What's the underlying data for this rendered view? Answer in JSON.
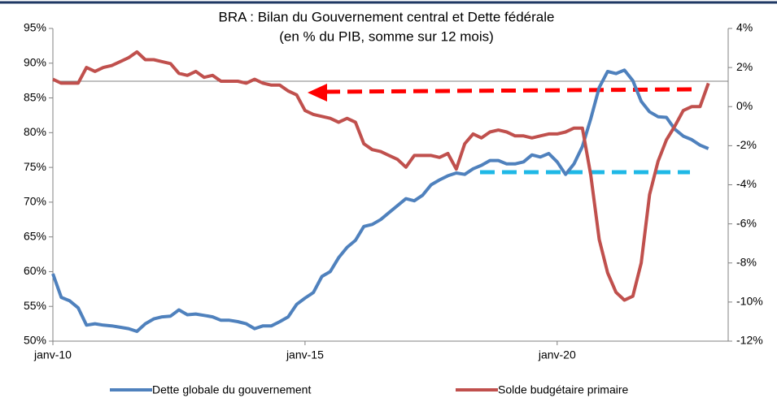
{
  "chart_data": {
    "type": "line",
    "title": "BRA : Bilan du Gouvernement central et Dette fédérale",
    "subtitle": "(en % du PIB, somme sur 12 mois)",
    "categories": [
      "janv-10",
      null,
      null,
      null,
      null,
      null,
      null,
      null,
      null,
      null,
      null,
      null,
      null,
      null,
      null,
      null,
      null,
      null,
      null,
      null,
      null,
      null,
      null,
      null,
      null,
      null,
      null,
      null,
      null,
      null,
      "janv-15",
      null,
      null,
      null,
      null,
      null,
      null,
      null,
      null,
      null,
      null,
      null,
      null,
      null,
      null,
      null,
      null,
      null,
      null,
      null,
      null,
      null,
      null,
      null,
      null,
      null,
      null,
      null,
      null,
      null,
      "janv-20",
      null,
      null,
      null,
      null,
      null,
      null,
      null,
      null,
      null,
      null,
      null,
      null,
      null,
      null,
      null,
      null,
      null,
      null
    ],
    "series": [
      {
        "name": "Dette globale du gouvernement",
        "color": "#4f81bd",
        "axis": "y",
        "values": [
          59.7,
          56.3,
          55.8,
          54.8,
          52.3,
          52.5,
          52.3,
          52.2,
          52.0,
          51.8,
          51.4,
          52.5,
          53.2,
          53.5,
          53.6,
          54.5,
          53.8,
          53.9,
          53.7,
          53.5,
          53.0,
          53.0,
          52.8,
          52.5,
          51.8,
          52.2,
          52.2,
          52.8,
          53.5,
          55.3,
          56.2,
          57.0,
          59.3,
          60.0,
          62.0,
          63.5,
          64.5,
          66.5,
          66.8,
          67.5,
          68.5,
          69.5,
          70.5,
          70.2,
          71.0,
          72.5,
          73.2,
          73.8,
          74.2,
          74.0,
          74.8,
          75.3,
          76.0,
          76.0,
          75.5,
          75.5,
          75.8,
          76.8,
          76.5,
          77.0,
          75.8,
          74.0,
          75.5,
          78.0,
          82.0,
          86.5,
          88.8,
          88.5,
          89.0,
          87.5,
          84.5,
          83.0,
          82.3,
          82.2,
          80.5,
          79.5,
          79.0,
          78.2,
          77.7
        ]
      },
      {
        "name": "Solde budgétaire primaire",
        "color": "#c0504d",
        "axis": "y2",
        "values": [
          1.4,
          1.2,
          1.2,
          1.2,
          2.0,
          1.8,
          2.0,
          2.1,
          2.3,
          2.5,
          2.8,
          2.4,
          2.4,
          2.3,
          2.2,
          1.7,
          1.6,
          1.8,
          1.5,
          1.6,
          1.3,
          1.3,
          1.3,
          1.2,
          1.4,
          1.2,
          1.1,
          1.1,
          0.8,
          0.6,
          -0.2,
          -0.4,
          -0.5,
          -0.6,
          -0.8,
          -0.6,
          -0.8,
          -1.9,
          -2.2,
          -2.3,
          -2.5,
          -2.7,
          -3.1,
          -2.5,
          -2.5,
          -2.5,
          -2.6,
          -2.4,
          -3.2,
          -1.9,
          -1.4,
          -1.6,
          -1.3,
          -1.2,
          -1.3,
          -1.5,
          -1.5,
          -1.6,
          -1.5,
          -1.4,
          -1.4,
          -1.3,
          -1.1,
          -1.1,
          -3.5,
          -6.8,
          -8.5,
          -9.5,
          -9.9,
          -9.7,
          -8.0,
          -4.5,
          -2.8,
          -1.7,
          -1.0,
          -0.2,
          0.0,
          0.0,
          1.2
        ]
      }
    ],
    "ylim": [
      50,
      95
    ],
    "yticks": [
      {
        "value": 50,
        "label": "50%"
      },
      {
        "value": 55,
        "label": "55%"
      },
      {
        "value": 60,
        "label": "60%"
      },
      {
        "value": 65,
        "label": "65%"
      },
      {
        "value": 70,
        "label": "70%"
      },
      {
        "value": 75,
        "label": "75%"
      },
      {
        "value": 80,
        "label": "80%"
      },
      {
        "value": 85,
        "label": "85%"
      },
      {
        "value": 90,
        "label": "90%"
      },
      {
        "value": 95,
        "label": "95%"
      }
    ],
    "y2lim": [
      -12,
      4
    ],
    "y2ticks": [
      {
        "value": -12,
        "label": "-12%"
      },
      {
        "value": -10,
        "label": "-10%"
      },
      {
        "value": -8,
        "label": "-8%"
      },
      {
        "value": -6,
        "label": "-6%"
      },
      {
        "value": -4,
        "label": "-4%"
      },
      {
        "value": -2,
        "label": "-2%"
      },
      {
        "value": 0,
        "label": "0%"
      },
      {
        "value": 2,
        "label": "2%"
      },
      {
        "value": 4,
        "label": "4%"
      }
    ],
    "legend": "bottom"
  }
}
